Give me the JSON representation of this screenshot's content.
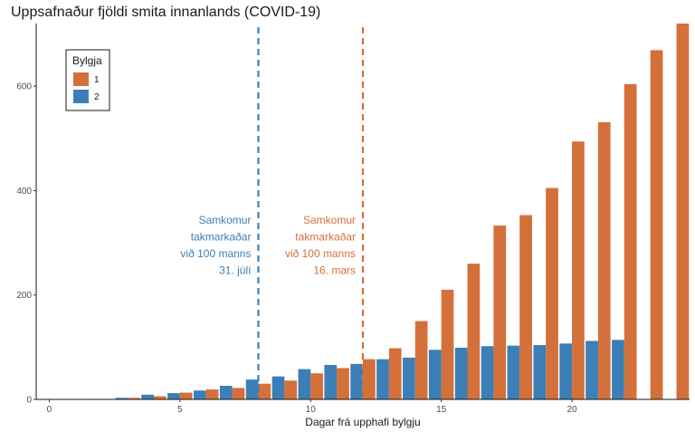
{
  "chart_data": {
    "type": "bar",
    "title": "Uppsafnaður fjöldi smita innanlands (COVID-19)",
    "xlabel": "Dagar frá upphafi bylgju",
    "ylabel": "",
    "xlim": [
      -0.5,
      24.5
    ],
    "ylim": [
      0,
      720
    ],
    "x_ticks": [
      0,
      5,
      10,
      15,
      20
    ],
    "y_ticks": [
      0,
      200,
      400,
      600
    ],
    "grid": false,
    "legend": {
      "title": "Bylgja",
      "position": "top-left"
    },
    "x": [
      0,
      1,
      2,
      3,
      4,
      5,
      6,
      7,
      8,
      9,
      10,
      11,
      12,
      13,
      14,
      15,
      16,
      17,
      18,
      19,
      20,
      21,
      22,
      23,
      24
    ],
    "series": [
      {
        "name": "1",
        "color": "#D4703A",
        "values": [
          0,
          0,
          1,
          3,
          6,
          13,
          19,
          22,
          30,
          36,
          50,
          60,
          77,
          98,
          150,
          210,
          260,
          333,
          353,
          405,
          494,
          531,
          604,
          669,
          720
        ]
      },
      {
        "name": "2",
        "color": "#3B7FB6",
        "values": [
          0,
          0,
          1,
          3,
          9,
          12,
          17,
          26,
          38,
          44,
          58,
          66,
          68,
          77,
          80,
          95,
          99,
          102,
          103,
          104,
          107,
          112,
          114,
          null,
          null
        ]
      }
    ],
    "annotations": [
      {
        "x": 8,
        "color": "#3B7FB6",
        "text": [
          "Samkomur",
          "takmarkaðar",
          "við 100 manns",
          "31. júlí"
        ]
      },
      {
        "x": 12,
        "color": "#D4703A",
        "text": [
          "Samkomur",
          "takmarkaðar",
          "við 100 manns",
          "16. mars"
        ]
      }
    ]
  }
}
